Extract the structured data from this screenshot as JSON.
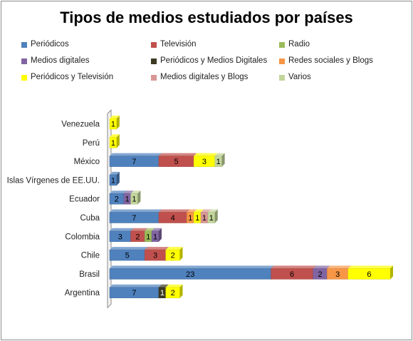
{
  "chart_data": {
    "type": "bar",
    "orientation": "horizontal",
    "stacked": true,
    "three_d": true,
    "title": "Tipos de medios estudiados por países",
    "xlabel": "",
    "ylabel": "",
    "xlim": [
      0,
      40
    ],
    "grid": false,
    "legend_position": "top",
    "categories": [
      "Argentina",
      "Brasil",
      "Chile",
      "Colombia",
      "Cuba",
      "Ecuador",
      "Islas Vírgenes de EE.UU.",
      "México",
      "Perú",
      "Venezuela"
    ],
    "series": [
      {
        "name": "Periódicos",
        "color": "#4f81bd",
        "values": [
          7,
          23,
          5,
          3,
          7,
          2,
          1,
          7,
          0,
          0
        ]
      },
      {
        "name": "Televisión",
        "color": "#c0504d",
        "values": [
          0,
          6,
          3,
          2,
          4,
          0,
          0,
          5,
          0,
          0
        ]
      },
      {
        "name": "Radio",
        "color": "#9bbb59",
        "values": [
          0,
          0,
          0,
          1,
          0,
          0,
          0,
          0,
          0,
          0
        ]
      },
      {
        "name": "Medios digitales",
        "color": "#8064a2",
        "values": [
          0,
          2,
          0,
          1,
          0,
          1,
          0,
          0,
          0,
          0
        ]
      },
      {
        "name": "Periódicos y Medios Digitales",
        "color": "#3c3a23",
        "values": [
          1,
          0,
          0,
          0,
          0,
          0,
          0,
          0,
          0,
          0
        ]
      },
      {
        "name": "Redes sociales y Blogs",
        "color": "#f79646",
        "values": [
          0,
          3,
          0,
          0,
          1,
          0,
          0,
          0,
          0,
          0
        ]
      },
      {
        "name": "Periódicos y Televisión",
        "color": "#ffff00",
        "values": [
          2,
          6,
          2,
          0,
          1,
          0,
          0,
          3,
          1,
          1
        ]
      },
      {
        "name": "Medios digitales y Blogs",
        "color": "#d99694",
        "values": [
          0,
          0,
          0,
          0,
          1,
          0,
          0,
          0,
          0,
          0
        ]
      },
      {
        "name": "Varios",
        "color": "#c3d69b",
        "values": [
          0,
          0,
          0,
          0,
          1,
          1,
          0,
          1,
          0,
          0
        ]
      }
    ]
  }
}
